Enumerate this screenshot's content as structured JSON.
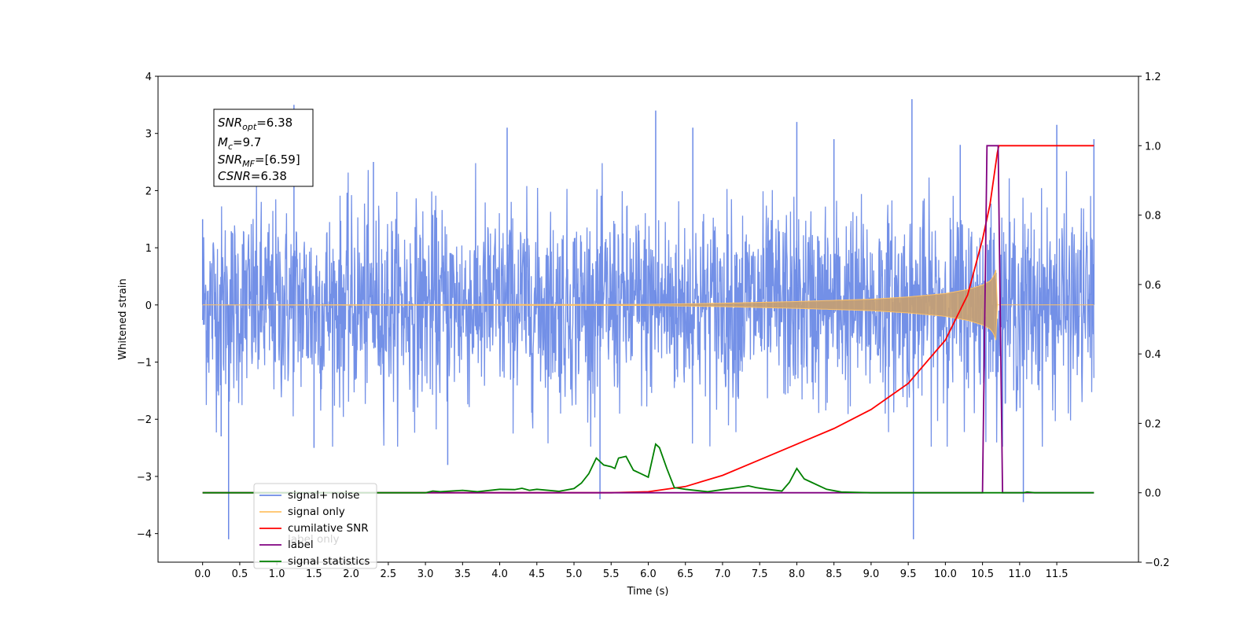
{
  "chart_data": {
    "type": "line",
    "xlabel": "Time (s)",
    "ylabel": "Whitened strain",
    "xlim": [
      -0.6,
      12.6
    ],
    "ylim_left": [
      -4.5,
      4
    ],
    "ylim_right": [
      -0.2,
      1.2
    ],
    "x_ticks": [
      "0.0",
      "0.5",
      "1.0",
      "1.5",
      "2.0",
      "2.5",
      "3.0",
      "3.5",
      "4.0",
      "4.5",
      "5.0",
      "5.5",
      "6.0",
      "6.5",
      "7.0",
      "7.5",
      "8.0",
      "8.5",
      "9.0",
      "9.5",
      "10.0",
      "10.5",
      "11.0",
      "11.5"
    ],
    "y_left_ticks": [
      "4",
      "3",
      "2",
      "1",
      "0",
      "−1",
      "−2",
      "−3",
      "−4"
    ],
    "y_right_ticks": [
      "1.2",
      "1.0",
      "0.8",
      "0.6",
      "0.4",
      "0.2",
      "0.0",
      "−0.2"
    ],
    "annotation": {
      "line1": "SNR",
      "line1_sub": "opt",
      "line1_val": "=6.38",
      "line2": "M",
      "line2_sub": "c",
      "line2_val": "=9.7",
      "line3": "SNR",
      "line3_sub": "MF",
      "line3_val": "=[6.59]",
      "line4": "CSNR",
      "line4_val": "=6.38"
    },
    "legend": [
      {
        "label": "signal+ noise",
        "color": "#6b8ae6"
      },
      {
        "label": "signal only",
        "color": "#ffc266"
      },
      {
        "label": "cumilative SNR",
        "color": "#ff0000"
      },
      {
        "label": "label",
        "color": "#800080"
      },
      {
        "label": "signal statistics",
        "color": "#008000"
      }
    ],
    "legend_ghost_label": "label only",
    "series": [
      {
        "name": "signal+ noise",
        "axis": "left",
        "color": "#6b8ae6",
        "x_range": [
          0.0,
          12.0
        ],
        "typical_amplitude": 1.6,
        "peaks": [
          [
            0.0,
            1.5
          ],
          [
            0.25,
            -2.3
          ],
          [
            0.35,
            -4.1
          ],
          [
            1.23,
            3.5
          ],
          [
            1.5,
            -2.5
          ],
          [
            2.3,
            2.5
          ],
          [
            3.3,
            -2.8
          ],
          [
            4.1,
            3.1
          ],
          [
            5.35,
            -3.4
          ],
          [
            6.1,
            3.4
          ],
          [
            6.6,
            3.1
          ],
          [
            8.0,
            3.2
          ],
          [
            8.5,
            2.9
          ],
          [
            9.55,
            3.6
          ],
          [
            9.57,
            -4.1
          ],
          [
            10.2,
            2.8
          ],
          [
            11.05,
            -3.45
          ],
          [
            11.5,
            3.15
          ],
          [
            12.0,
            2.9
          ]
        ]
      },
      {
        "name": "signal only",
        "axis": "left",
        "color": "#ffc266",
        "x_range": [
          0.0,
          12.0
        ],
        "envelope": [
          [
            0.0,
            0.0
          ],
          [
            6.0,
            0.01
          ],
          [
            7.0,
            0.03
          ],
          [
            8.0,
            0.06
          ],
          [
            9.0,
            0.1
          ],
          [
            9.5,
            0.14
          ],
          [
            10.0,
            0.2
          ],
          [
            10.3,
            0.27
          ],
          [
            10.5,
            0.35
          ],
          [
            10.6,
            0.42
          ],
          [
            10.65,
            0.5
          ],
          [
            10.69,
            0.65
          ],
          [
            10.7,
            0.0
          ],
          [
            12.0,
            0.0
          ]
        ]
      },
      {
        "name": "cumilative SNR",
        "axis": "right",
        "color": "#ff0000",
        "points": [
          [
            0.0,
            0.0
          ],
          [
            5.5,
            0.0
          ],
          [
            6.0,
            0.003
          ],
          [
            6.5,
            0.018
          ],
          [
            7.0,
            0.05
          ],
          [
            7.5,
            0.095
          ],
          [
            8.0,
            0.14
          ],
          [
            8.5,
            0.185
          ],
          [
            9.0,
            0.24
          ],
          [
            9.5,
            0.315
          ],
          [
            10.0,
            0.44
          ],
          [
            10.3,
            0.57
          ],
          [
            10.5,
            0.73
          ],
          [
            10.6,
            0.83
          ],
          [
            10.7,
            0.98
          ],
          [
            10.72,
            1.0
          ],
          [
            12.0,
            1.0
          ]
        ]
      },
      {
        "name": "label",
        "axis": "right",
        "color": "#800080",
        "points": [
          [
            0.0,
            0.0
          ],
          [
            10.5,
            0.0
          ],
          [
            10.56,
            1.0
          ],
          [
            10.71,
            1.0
          ],
          [
            10.77,
            0.0
          ],
          [
            12.0,
            0.0
          ]
        ]
      },
      {
        "name": "signal statistics",
        "axis": "right",
        "color": "#008000",
        "points": [
          [
            0.0,
            0.0
          ],
          [
            3.0,
            0.0
          ],
          [
            3.1,
            0.005
          ],
          [
            3.2,
            0.003
          ],
          [
            3.5,
            0.007
          ],
          [
            3.7,
            0.003
          ],
          [
            4.0,
            0.01
          ],
          [
            4.2,
            0.009
          ],
          [
            4.3,
            0.013
          ],
          [
            4.4,
            0.007
          ],
          [
            4.5,
            0.01
          ],
          [
            4.8,
            0.004
          ],
          [
            5.0,
            0.012
          ],
          [
            5.1,
            0.028
          ],
          [
            5.2,
            0.055
          ],
          [
            5.3,
            0.1
          ],
          [
            5.4,
            0.08
          ],
          [
            5.5,
            0.075
          ],
          [
            5.55,
            0.07
          ],
          [
            5.6,
            0.1
          ],
          [
            5.7,
            0.105
          ],
          [
            5.8,
            0.065
          ],
          [
            5.9,
            0.055
          ],
          [
            6.0,
            0.045
          ],
          [
            6.1,
            0.14
          ],
          [
            6.15,
            0.13
          ],
          [
            6.25,
            0.07
          ],
          [
            6.35,
            0.015
          ],
          [
            6.5,
            0.01
          ],
          [
            6.8,
            0.003
          ],
          [
            7.0,
            0.009
          ],
          [
            7.2,
            0.015
          ],
          [
            7.35,
            0.02
          ],
          [
            7.45,
            0.015
          ],
          [
            7.6,
            0.01
          ],
          [
            7.8,
            0.005
          ],
          [
            7.9,
            0.03
          ],
          [
            8.0,
            0.07
          ],
          [
            8.1,
            0.04
          ],
          [
            8.2,
            0.03
          ],
          [
            8.4,
            0.01
          ],
          [
            8.6,
            0.002
          ],
          [
            9.0,
            0.0
          ],
          [
            11.05,
            0.0
          ],
          [
            11.1,
            0.002
          ],
          [
            11.2,
            0.0
          ],
          [
            12.0,
            0.0
          ]
        ]
      }
    ]
  }
}
